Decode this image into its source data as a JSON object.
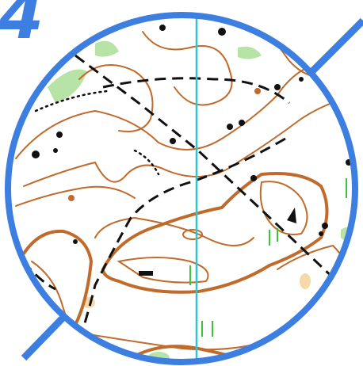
{
  "badge": "4"
}
